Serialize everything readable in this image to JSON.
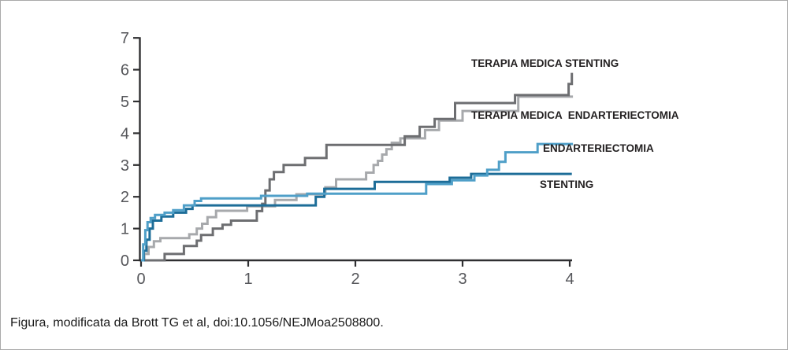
{
  "figure": {
    "caption": "Figura, modificata da Brott TG et al, doi:10.1056/NEJMoa2508800."
  },
  "chart_data": {
    "type": "line",
    "subtype": "kaplan-meier-step",
    "title": "",
    "xlabel": "",
    "ylabel": "",
    "xlim": [
      0,
      4
    ],
    "ylim": [
      0,
      7
    ],
    "x_ticks": [
      0,
      1,
      2,
      3,
      4
    ],
    "y_ticks": [
      0,
      1,
      2,
      3,
      4,
      5,
      6,
      7
    ],
    "grid": false,
    "legend_position": "inline-annotations",
    "axis_color": "#2f2f31",
    "series": [
      {
        "name": "TERAPIA MEDICA STENTING",
        "color": "#6d6e71",
        "end_x": 4.02,
        "points": [
          [
            0,
            0
          ],
          [
            0.22,
            0.2
          ],
          [
            0.4,
            0.45
          ],
          [
            0.52,
            0.62
          ],
          [
            0.56,
            0.8
          ],
          [
            0.67,
            1.0
          ],
          [
            0.76,
            1.12
          ],
          [
            0.84,
            1.25
          ],
          [
            1.08,
            1.55
          ],
          [
            1.13,
            1.78
          ],
          [
            1.16,
            2.2
          ],
          [
            1.2,
            2.55
          ],
          [
            1.24,
            2.78
          ],
          [
            1.33,
            3.0
          ],
          [
            1.53,
            3.22
          ],
          [
            1.73,
            3.63
          ],
          [
            2.46,
            3.9
          ],
          [
            2.6,
            4.2
          ],
          [
            2.74,
            4.45
          ],
          [
            2.93,
            4.95
          ],
          [
            3.49,
            5.2
          ],
          [
            3.99,
            5.55
          ],
          [
            4.02,
            5.9
          ]
        ]
      },
      {
        "name": "TERAPIA MEDICA  ENDARTERIECTOMIA",
        "color": "#a7a9ac",
        "end_x": 4.03,
        "points": [
          [
            0,
            0
          ],
          [
            0.03,
            0.2
          ],
          [
            0.07,
            0.42
          ],
          [
            0.12,
            0.6
          ],
          [
            0.18,
            0.7
          ],
          [
            0.45,
            0.82
          ],
          [
            0.52,
            1.0
          ],
          [
            0.57,
            1.15
          ],
          [
            0.62,
            1.36
          ],
          [
            0.7,
            1.56
          ],
          [
            0.99,
            1.7
          ],
          [
            1.25,
            1.9
          ],
          [
            1.45,
            2.08
          ],
          [
            1.72,
            2.3
          ],
          [
            1.82,
            2.55
          ],
          [
            2.1,
            2.76
          ],
          [
            2.17,
            3.0
          ],
          [
            2.21,
            3.13
          ],
          [
            2.25,
            3.33
          ],
          [
            2.29,
            3.5
          ],
          [
            2.34,
            3.7
          ],
          [
            2.42,
            3.84
          ],
          [
            2.65,
            4.1
          ],
          [
            2.78,
            4.4
          ],
          [
            3.0,
            4.7
          ],
          [
            3.52,
            5.15
          ]
        ]
      },
      {
        "name": "ENDARTERIECTOMIA",
        "color": "#4f9fc8",
        "end_x": 4.03,
        "points": [
          [
            0,
            0
          ],
          [
            0.02,
            0.5
          ],
          [
            0.04,
            0.95
          ],
          [
            0.06,
            1.2
          ],
          [
            0.09,
            1.33
          ],
          [
            0.13,
            1.43
          ],
          [
            0.22,
            1.5
          ],
          [
            0.3,
            1.58
          ],
          [
            0.4,
            1.73
          ],
          [
            0.5,
            1.87
          ],
          [
            0.56,
            1.95
          ],
          [
            1.12,
            2.03
          ],
          [
            1.55,
            2.1
          ],
          [
            2.66,
            2.4
          ],
          [
            2.9,
            2.52
          ],
          [
            3.11,
            2.67
          ],
          [
            3.23,
            2.85
          ],
          [
            3.34,
            3.1
          ],
          [
            3.4,
            3.4
          ],
          [
            3.7,
            3.66
          ]
        ]
      },
      {
        "name": "STENTING",
        "color": "#1d6d98",
        "end_x": 4.02,
        "points": [
          [
            0,
            0
          ],
          [
            0.025,
            0.3
          ],
          [
            0.05,
            0.65
          ],
          [
            0.08,
            1.0
          ],
          [
            0.11,
            1.25
          ],
          [
            0.19,
            1.38
          ],
          [
            0.3,
            1.5
          ],
          [
            0.42,
            1.62
          ],
          [
            0.48,
            1.73
          ],
          [
            1.63,
            2.0
          ],
          [
            1.71,
            2.25
          ],
          [
            2.18,
            2.47
          ],
          [
            2.88,
            2.6
          ],
          [
            3.08,
            2.72
          ]
        ]
      }
    ]
  }
}
